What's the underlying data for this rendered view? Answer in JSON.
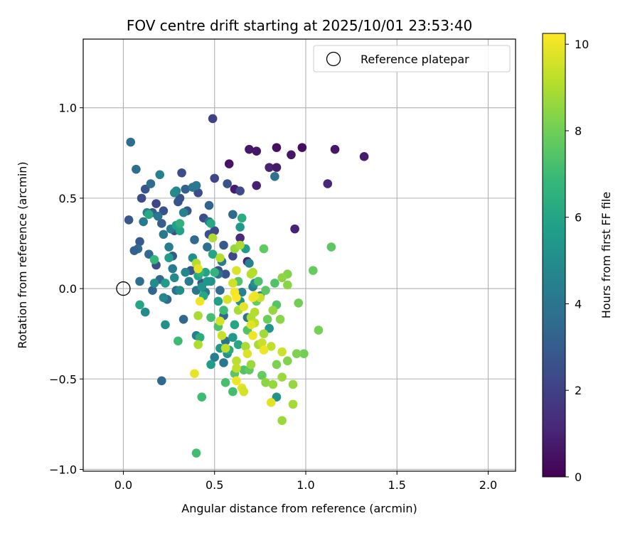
{
  "chart_data": {
    "type": "scatter",
    "title": "FOV centre drift starting at 2025/10/01 23:53:40",
    "xlabel": "Angular distance from reference (arcmin)",
    "ylabel": "Rotation from reference (arcmin)",
    "xlim": [
      -0.22,
      2.15
    ],
    "ylim": [
      -1.01,
      1.38
    ],
    "xticks": [
      0.0,
      0.5,
      1.0,
      1.5,
      2.0
    ],
    "xtick_labels": [
      "0.0",
      "0.5",
      "1.0",
      "1.5",
      "2.0"
    ],
    "yticks": [
      -1.0,
      -0.5,
      0.0,
      0.5,
      1.0
    ],
    "ytick_labels": [
      "−1.0",
      "−0.5",
      "0.0",
      "0.5",
      "1.0"
    ],
    "grid": true,
    "legend": {
      "position": "top-right",
      "entries": [
        {
          "label": "Reference platepar",
          "marker": "open-circle"
        }
      ]
    },
    "reference_point": {
      "x": 0.0,
      "y": 0.0
    },
    "colorbar": {
      "label": "Hours from first FF file",
      "colormap": "viridis",
      "range": [
        0,
        10.25
      ],
      "ticks": [
        0,
        2,
        4,
        6,
        8,
        10
      ],
      "tick_labels": [
        "0",
        "2",
        "4",
        "6",
        "8",
        "10"
      ]
    },
    "viridis_stops": [
      "#440154",
      "#482878",
      "#3e4989",
      "#31688e",
      "#26828e",
      "#1f9e89",
      "#35b779",
      "#6ece58",
      "#b5de2b",
      "#fde725"
    ],
    "points": [
      {
        "x": 0.58,
        "y": 0.69,
        "h": 0.5
      },
      {
        "x": 0.69,
        "y": 0.77,
        "h": 0.6
      },
      {
        "x": 0.73,
        "y": 0.76,
        "h": 0.6
      },
      {
        "x": 0.84,
        "y": 0.78,
        "h": 0.4
      },
      {
        "x": 0.92,
        "y": 0.74,
        "h": 0.6
      },
      {
        "x": 0.98,
        "y": 0.78,
        "h": 0.4
      },
      {
        "x": 1.16,
        "y": 0.77,
        "h": 0.6
      },
      {
        "x": 1.32,
        "y": 0.73,
        "h": 0.8
      },
      {
        "x": 0.8,
        "y": 0.67,
        "h": 1.0
      },
      {
        "x": 0.84,
        "y": 0.67,
        "h": 0.7
      },
      {
        "x": 0.61,
        "y": 0.55,
        "h": 0.8
      },
      {
        "x": 0.73,
        "y": 0.57,
        "h": 0.9
      },
      {
        "x": 1.12,
        "y": 0.58,
        "h": 1.1
      },
      {
        "x": 0.94,
        "y": 0.33,
        "h": 1.0
      },
      {
        "x": 0.64,
        "y": 0.28,
        "h": 1.2
      },
      {
        "x": 0.68,
        "y": 0.15,
        "h": 1.0
      },
      {
        "x": 0.49,
        "y": 0.94,
        "h": 2.0
      },
      {
        "x": 0.5,
        "y": 0.61,
        "h": 2.2
      },
      {
        "x": 0.57,
        "y": 0.58,
        "h": 2.6
      },
      {
        "x": 0.64,
        "y": 0.54,
        "h": 2.3
      },
      {
        "x": 0.32,
        "y": 0.64,
        "h": 2.4
      },
      {
        "x": 0.41,
        "y": 0.53,
        "h": 2.4
      },
      {
        "x": 0.1,
        "y": 0.5,
        "h": 2.4
      },
      {
        "x": 0.12,
        "y": 0.55,
        "h": 2.7
      },
      {
        "x": 0.18,
        "y": 0.47,
        "h": 2.2
      },
      {
        "x": 0.22,
        "y": 0.43,
        "h": 2.6
      },
      {
        "x": 0.31,
        "y": 0.5,
        "h": 2.5
      },
      {
        "x": 0.35,
        "y": 0.43,
        "h": 2.8
      },
      {
        "x": 0.44,
        "y": 0.39,
        "h": 2.4
      },
      {
        "x": 0.47,
        "y": 0.3,
        "h": 2.6
      },
      {
        "x": 0.5,
        "y": 0.32,
        "h": 2.3
      },
      {
        "x": 0.55,
        "y": 0.24,
        "h": 2.9
      },
      {
        "x": 0.6,
        "y": 0.18,
        "h": 2.2
      },
      {
        "x": 0.52,
        "y": 0.1,
        "h": 2.5
      },
      {
        "x": 0.56,
        "y": 0.08,
        "h": 2.7
      },
      {
        "x": 0.03,
        "y": 0.38,
        "h": 2.8
      },
      {
        "x": 0.09,
        "y": 0.26,
        "h": 2.9
      },
      {
        "x": 0.18,
        "y": 0.13,
        "h": 2.5
      },
      {
        "x": 0.27,
        "y": 0.18,
        "h": 2.9
      },
      {
        "x": 0.28,
        "y": 0.32,
        "h": 2.4
      },
      {
        "x": 0.37,
        "y": 0.1,
        "h": 2.7
      },
      {
        "x": 0.43,
        "y": 0.03,
        "h": 2.6
      },
      {
        "x": 0.3,
        "y": 0.48,
        "h": 2.7
      },
      {
        "x": 0.16,
        "y": 0.42,
        "h": 3.0
      },
      {
        "x": 0.21,
        "y": 0.36,
        "h": 3.0
      },
      {
        "x": 0.34,
        "y": 0.55,
        "h": 3.2
      },
      {
        "x": 0.04,
        "y": 0.81,
        "h": 3.6
      },
      {
        "x": 0.07,
        "y": 0.66,
        "h": 3.7
      },
      {
        "x": 0.15,
        "y": 0.58,
        "h": 3.6
      },
      {
        "x": 0.08,
        "y": 0.22,
        "h": 3.5
      },
      {
        "x": 0.06,
        "y": 0.21,
        "h": 3.2
      },
      {
        "x": 0.14,
        "y": 0.19,
        "h": 3.6
      },
      {
        "x": 0.2,
        "y": 0.05,
        "h": 3.4
      },
      {
        "x": 0.09,
        "y": 0.04,
        "h": 3.7
      },
      {
        "x": 0.16,
        "y": -0.01,
        "h": 3.3
      },
      {
        "x": 0.24,
        "y": -0.06,
        "h": 3.5
      },
      {
        "x": 0.29,
        "y": -0.01,
        "h": 3.7
      },
      {
        "x": 0.33,
        "y": -0.17,
        "h": 3.4
      },
      {
        "x": 0.21,
        "y": -0.51,
        "h": 3.4
      },
      {
        "x": 0.39,
        "y": 0.27,
        "h": 3.5
      },
      {
        "x": 0.46,
        "y": 0.23,
        "h": 3.8
      },
      {
        "x": 0.47,
        "y": 0.46,
        "h": 3.3
      },
      {
        "x": 0.52,
        "y": 0.08,
        "h": 3.9
      },
      {
        "x": 0.53,
        "y": -0.01,
        "h": 3.6
      },
      {
        "x": 0.55,
        "y": -0.15,
        "h": 3.4
      },
      {
        "x": 0.56,
        "y": -0.29,
        "h": 3.8
      },
      {
        "x": 0.6,
        "y": 0.41,
        "h": 3.5
      },
      {
        "x": 0.83,
        "y": 0.62,
        "h": 3.8
      },
      {
        "x": 0.47,
        "y": 0.37,
        "h": 4.0
      },
      {
        "x": 0.4,
        "y": 0.57,
        "h": 4.2
      },
      {
        "x": 0.38,
        "y": 0.56,
        "h": 4.1
      },
      {
        "x": 0.19,
        "y": 0.4,
        "h": 4.0
      },
      {
        "x": 0.26,
        "y": 0.33,
        "h": 4.3
      },
      {
        "x": 0.22,
        "y": 0.3,
        "h": 4.1
      },
      {
        "x": 0.27,
        "y": 0.11,
        "h": 4.2
      },
      {
        "x": 0.25,
        "y": 0.23,
        "h": 4.4
      },
      {
        "x": 0.11,
        "y": 0.37,
        "h": 4.2
      },
      {
        "x": 0.13,
        "y": 0.42,
        "h": 4.4
      },
      {
        "x": 0.36,
        "y": 0.04,
        "h": 4.3
      },
      {
        "x": 0.4,
        "y": -0.01,
        "h": 4.0
      },
      {
        "x": 0.45,
        "y": -0.02,
        "h": 4.1
      },
      {
        "x": 0.5,
        "y": -0.38,
        "h": 4.4
      },
      {
        "x": 0.55,
        "y": -0.41,
        "h": 4.0
      },
      {
        "x": 0.68,
        "y": -0.16,
        "h": 4.1
      },
      {
        "x": 0.71,
        "y": 0.01,
        "h": 4.3
      },
      {
        "x": 0.75,
        "y": -0.04,
        "h": 4.2
      },
      {
        "x": 0.4,
        "y": -0.26,
        "h": 4.4
      },
      {
        "x": 0.54,
        "y": 0.15,
        "h": 4.3
      },
      {
        "x": 0.65,
        "y": -0.02,
        "h": 4.5
      },
      {
        "x": 0.69,
        "y": 0.14,
        "h": 4.5
      },
      {
        "x": 0.29,
        "y": 0.54,
        "h": 4.7
      },
      {
        "x": 0.2,
        "y": 0.63,
        "h": 4.6
      },
      {
        "x": 0.28,
        "y": 0.53,
        "h": 4.8
      },
      {
        "x": 0.33,
        "y": 0.42,
        "h": 4.6
      },
      {
        "x": 0.28,
        "y": 0.06,
        "h": 4.9
      },
      {
        "x": 0.34,
        "y": 0.09,
        "h": 4.7
      },
      {
        "x": 0.12,
        "y": -0.13,
        "h": 4.9
      },
      {
        "x": 0.23,
        "y": -0.2,
        "h": 5.1
      },
      {
        "x": 0.22,
        "y": -0.05,
        "h": 4.8
      },
      {
        "x": 0.17,
        "y": 0.03,
        "h": 5.0
      },
      {
        "x": 0.31,
        "y": -0.01,
        "h": 5.0
      },
      {
        "x": 0.38,
        "y": 0.17,
        "h": 5.1
      },
      {
        "x": 0.43,
        "y": 0.01,
        "h": 5.3
      },
      {
        "x": 0.48,
        "y": 0.04,
        "h": 5.2
      },
      {
        "x": 0.46,
        "y": 0.04,
        "h": 5.4
      },
      {
        "x": 0.53,
        "y": -0.33,
        "h": 5.4
      },
      {
        "x": 0.57,
        "y": -0.36,
        "h": 5.2
      },
      {
        "x": 0.6,
        "y": -0.27,
        "h": 5.5
      },
      {
        "x": 0.64,
        "y": -0.07,
        "h": 5.2
      },
      {
        "x": 0.72,
        "y": 0.03,
        "h": 5.1
      },
      {
        "x": 0.8,
        "y": -0.22,
        "h": 5.3
      },
      {
        "x": 0.84,
        "y": -0.6,
        "h": 5.2
      },
      {
        "x": 0.64,
        "y": 0.34,
        "h": 5.5
      },
      {
        "x": 0.67,
        "y": 0.22,
        "h": 5.6
      },
      {
        "x": 0.25,
        "y": 0.17,
        "h": 5.7
      },
      {
        "x": 0.29,
        "y": 0.35,
        "h": 5.8
      },
      {
        "x": 0.31,
        "y": 0.32,
        "h": 5.9
      },
      {
        "x": 0.23,
        "y": 0.03,
        "h": 5.6
      },
      {
        "x": 0.41,
        "y": 0.07,
        "h": 6.0
      },
      {
        "x": 0.45,
        "y": 0.09,
        "h": 5.9
      },
      {
        "x": 0.49,
        "y": 0.19,
        "h": 6.0
      },
      {
        "x": 0.52,
        "y": -0.07,
        "h": 5.8
      },
      {
        "x": 0.61,
        "y": -0.2,
        "h": 6.0
      },
      {
        "x": 0.63,
        "y": -0.31,
        "h": 6.1
      },
      {
        "x": 0.48,
        "y": -0.42,
        "h": 5.7
      },
      {
        "x": 0.58,
        "y": -0.34,
        "h": 6.2
      },
      {
        "x": 0.44,
        "y": -0.04,
        "h": 6.1
      },
      {
        "x": 0.09,
        "y": -0.09,
        "h": 6.0
      },
      {
        "x": 0.14,
        "y": 0.41,
        "h": 6.2
      },
      {
        "x": 0.48,
        "y": 0.36,
        "h": 6.2
      },
      {
        "x": 0.65,
        "y": 0.39,
        "h": 6.3
      },
      {
        "x": 0.42,
        "y": -0.27,
        "h": 6.4
      },
      {
        "x": 0.31,
        "y": 0.36,
        "h": 6.5
      },
      {
        "x": 0.42,
        "y": 0.09,
        "h": 6.6
      },
      {
        "x": 0.5,
        "y": 0.09,
        "h": 6.7
      },
      {
        "x": 0.17,
        "y": 0.16,
        "h": 6.8
      },
      {
        "x": 0.3,
        "y": -0.29,
        "h": 7.0
      },
      {
        "x": 0.4,
        "y": -0.91,
        "h": 7.1
      },
      {
        "x": 0.43,
        "y": -0.6,
        "h": 7.0
      },
      {
        "x": 0.56,
        "y": -0.52,
        "h": 7.2
      },
      {
        "x": 0.6,
        "y": -0.57,
        "h": 7.1
      },
      {
        "x": 0.66,
        "y": -0.45,
        "h": 7.4
      },
      {
        "x": 0.52,
        "y": -0.21,
        "h": 7.3
      },
      {
        "x": 0.55,
        "y": -0.12,
        "h": 7.0
      },
      {
        "x": 0.48,
        "y": -0.16,
        "h": 7.2
      },
      {
        "x": 0.63,
        "y": 0.04,
        "h": 7.5
      },
      {
        "x": 0.68,
        "y": -0.23,
        "h": 7.4
      },
      {
        "x": 0.74,
        "y": 0.04,
        "h": 7.3
      },
      {
        "x": 0.78,
        "y": -0.01,
        "h": 7.6
      },
      {
        "x": 0.83,
        "y": 0.03,
        "h": 7.4
      },
      {
        "x": 0.77,
        "y": 0.22,
        "h": 7.7
      },
      {
        "x": 0.73,
        "y": -0.07,
        "h": 7.8
      },
      {
        "x": 0.79,
        "y": -0.17,
        "h": 7.9
      },
      {
        "x": 0.84,
        "y": -0.09,
        "h": 7.5
      },
      {
        "x": 0.61,
        "y": -0.47,
        "h": 7.6
      },
      {
        "x": 0.69,
        "y": -0.45,
        "h": 7.7
      },
      {
        "x": 0.76,
        "y": -0.48,
        "h": 7.8
      },
      {
        "x": 1.04,
        "y": 0.1,
        "h": 7.8
      },
      {
        "x": 1.14,
        "y": 0.23,
        "h": 7.6
      },
      {
        "x": 0.96,
        "y": -0.08,
        "h": 8.0
      },
      {
        "x": 0.99,
        "y": -0.36,
        "h": 8.0
      },
      {
        "x": 1.07,
        "y": -0.23,
        "h": 8.1
      },
      {
        "x": 0.9,
        "y": -0.4,
        "h": 8.3
      },
      {
        "x": 0.95,
        "y": -0.36,
        "h": 8.2
      },
      {
        "x": 0.84,
        "y": -0.42,
        "h": 8.2
      },
      {
        "x": 0.78,
        "y": -0.52,
        "h": 8.5
      },
      {
        "x": 0.82,
        "y": -0.53,
        "h": 8.6
      },
      {
        "x": 0.87,
        "y": -0.49,
        "h": 8.7
      },
      {
        "x": 0.93,
        "y": -0.53,
        "h": 8.6
      },
      {
        "x": 0.93,
        "y": -0.64,
        "h": 8.8
      },
      {
        "x": 0.87,
        "y": -0.73,
        "h": 8.7
      },
      {
        "x": 0.9,
        "y": 0.02,
        "h": 8.4
      },
      {
        "x": 0.9,
        "y": 0.08,
        "h": 8.3
      },
      {
        "x": 0.87,
        "y": 0.06,
        "h": 8.5
      },
      {
        "x": 0.86,
        "y": -0.17,
        "h": 8.4
      },
      {
        "x": 0.82,
        "y": -0.12,
        "h": 8.6
      },
      {
        "x": 0.77,
        "y": -0.25,
        "h": 8.8
      },
      {
        "x": 0.74,
        "y": -0.31,
        "h": 8.9
      },
      {
        "x": 0.67,
        "y": -0.32,
        "h": 8.9
      },
      {
        "x": 0.7,
        "y": -0.42,
        "h": 8.7
      },
      {
        "x": 0.63,
        "y": -0.12,
        "h": 8.9
      },
      {
        "x": 0.7,
        "y": -0.16,
        "h": 9.0
      },
      {
        "x": 0.72,
        "y": -0.13,
        "h": 9.1
      },
      {
        "x": 0.61,
        "y": 0.22,
        "h": 8.6
      },
      {
        "x": 0.64,
        "y": 0.24,
        "h": 8.9
      },
      {
        "x": 0.71,
        "y": 0.09,
        "h": 9.0
      },
      {
        "x": 0.7,
        "y": 0.08,
        "h": 9.1
      },
      {
        "x": 0.49,
        "y": 0.28,
        "h": 9.0
      },
      {
        "x": 0.53,
        "y": 0.17,
        "h": 9.1
      },
      {
        "x": 0.4,
        "y": 0.14,
        "h": 9.1
      },
      {
        "x": 0.41,
        "y": -0.15,
        "h": 8.9
      },
      {
        "x": 0.41,
        "y": -0.31,
        "h": 9.0
      },
      {
        "x": 0.56,
        "y": -0.33,
        "h": 9.2
      },
      {
        "x": 0.62,
        "y": -0.4,
        "h": 9.2
      },
      {
        "x": 0.62,
        "y": -0.44,
        "h": 9.3
      },
      {
        "x": 0.72,
        "y": -0.19,
        "h": 9.3
      },
      {
        "x": 0.76,
        "y": -0.3,
        "h": 9.4
      },
      {
        "x": 0.87,
        "y": -0.35,
        "h": 9.5
      },
      {
        "x": 0.81,
        "y": -0.32,
        "h": 9.3
      },
      {
        "x": 0.75,
        "y": -0.05,
        "h": 9.4
      },
      {
        "x": 0.57,
        "y": -0.06,
        "h": 9.6
      },
      {
        "x": 0.53,
        "y": -0.18,
        "h": 9.6
      },
      {
        "x": 0.54,
        "y": -0.26,
        "h": 9.4
      },
      {
        "x": 0.6,
        "y": 0.03,
        "h": 9.5
      },
      {
        "x": 0.68,
        "y": -0.36,
        "h": 9.7
      },
      {
        "x": 0.65,
        "y": -0.55,
        "h": 9.8
      },
      {
        "x": 0.66,
        "y": -0.57,
        "h": 9.6
      },
      {
        "x": 0.81,
        "y": -0.63,
        "h": 9.8
      },
      {
        "x": 0.62,
        "y": -0.51,
        "h": 10.0
      },
      {
        "x": 0.39,
        "y": -0.47,
        "h": 9.9
      },
      {
        "x": 0.7,
        "y": -0.2,
        "h": 9.8
      },
      {
        "x": 0.71,
        "y": -0.26,
        "h": 10.0
      },
      {
        "x": 0.77,
        "y": -0.34,
        "h": 10.0
      },
      {
        "x": 0.62,
        "y": 0.1,
        "h": 9.7
      },
      {
        "x": 0.71,
        "y": -0.05,
        "h": 10.1
      },
      {
        "x": 0.66,
        "y": -0.1,
        "h": 9.9
      },
      {
        "x": 0.42,
        "y": -0.07,
        "h": 10.0
      },
      {
        "x": 0.61,
        "y": -0.02,
        "h": 10.1
      },
      {
        "x": 0.62,
        "y": -0.05,
        "h": 10.2
      },
      {
        "x": 0.41,
        "y": 0.11,
        "h": 9.9
      },
      {
        "x": 0.72,
        "y": -0.04,
        "h": 10.0
      }
    ]
  }
}
